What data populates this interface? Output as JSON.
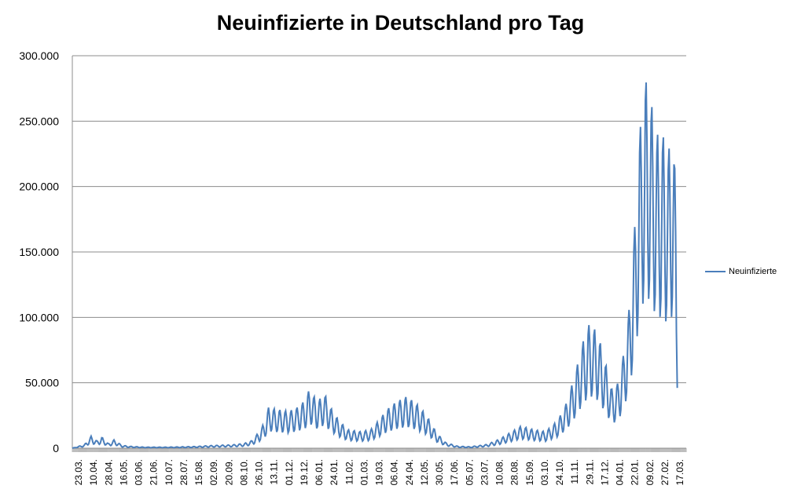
{
  "chart_data": {
    "type": "line",
    "title": "Neuinfizierte in Deutschland pro Tag",
    "xlabel": "",
    "ylabel": "",
    "ylim": [
      0,
      300000
    ],
    "y_ticks": [
      "0",
      "50.000",
      "100.000",
      "150.000",
      "200.000",
      "250.000",
      "300.000"
    ],
    "y_tick_values": [
      0,
      50000,
      100000,
      150000,
      200000,
      250000,
      300000
    ],
    "grid": true,
    "legend_position": "right",
    "line_color": "#4a7ebb",
    "x_range": [
      "2020-03-05",
      "2022-03-26"
    ],
    "x_tick_labels": [
      "23.03.",
      "10.04.",
      "28.04.",
      "16.05.",
      "03.06.",
      "21.06.",
      "10.07.",
      "28.07.",
      "15.08.",
      "02.09.",
      "20.09.",
      "08.10.",
      "26.10.",
      "13.11.",
      "01.12.",
      "19.12.",
      "06.01.",
      "24.01.",
      "11.02.",
      "01.03.",
      "19.03.",
      "06.04.",
      "24.04.",
      "12.05.",
      "30.05.",
      "17.06.",
      "05.07.",
      "23.07.",
      "10.08.",
      "28.08.",
      "15.09.",
      "03.10.",
      "24.10.",
      "11.11.",
      "29.11.",
      "17.12.",
      "04.01.",
      "22.01.",
      "09.02.",
      "27.02.",
      "17.03."
    ],
    "series": [
      {
        "name": "Neuinfizierte",
        "points": [
          [
            "2020-03-05",
            0
          ],
          [
            "2020-03-20",
            2000
          ],
          [
            "2020-03-28",
            6500
          ],
          [
            "2020-04-04",
            4000
          ],
          [
            "2020-04-10",
            6000
          ],
          [
            "2020-04-18",
            2500
          ],
          [
            "2020-04-25",
            4500
          ],
          [
            "2020-05-05",
            1500
          ],
          [
            "2020-05-15",
            1000
          ],
          [
            "2020-06-01",
            600
          ],
          [
            "2020-07-01",
            600
          ],
          [
            "2020-08-01",
            900
          ],
          [
            "2020-08-20",
            1400
          ],
          [
            "2020-09-15",
            1800
          ],
          [
            "2020-10-01",
            2500
          ],
          [
            "2020-10-10",
            4000
          ],
          [
            "2020-10-20",
            9000
          ],
          [
            "2020-10-27",
            15000
          ],
          [
            "2020-10-31",
            22000
          ],
          [
            "2020-11-10",
            21000
          ],
          [
            "2020-11-25",
            20000
          ],
          [
            "2020-12-05",
            22000
          ],
          [
            "2020-12-15",
            26000
          ],
          [
            "2020-12-20",
            32000
          ],
          [
            "2020-12-30",
            25000
          ],
          [
            "2021-01-07",
            30000
          ],
          [
            "2021-01-15",
            22000
          ],
          [
            "2021-01-25",
            15000
          ],
          [
            "2021-02-05",
            10000
          ],
          [
            "2021-02-20",
            9000
          ],
          [
            "2021-03-05",
            10000
          ],
          [
            "2021-03-15",
            15000
          ],
          [
            "2021-03-25",
            21000
          ],
          [
            "2021-04-05",
            25000
          ],
          [
            "2021-04-18",
            28000
          ],
          [
            "2021-04-30",
            24000
          ],
          [
            "2021-05-12",
            18000
          ],
          [
            "2021-05-25",
            8000
          ],
          [
            "2021-06-05",
            3000
          ],
          [
            "2021-06-20",
            1000
          ],
          [
            "2021-07-05",
            800
          ],
          [
            "2021-07-25",
            2000
          ],
          [
            "2021-08-10",
            5000
          ],
          [
            "2021-08-25",
            9000
          ],
          [
            "2021-09-05",
            12000
          ],
          [
            "2021-09-20",
            10000
          ],
          [
            "2021-10-05",
            9000
          ],
          [
            "2021-10-20",
            15000
          ],
          [
            "2021-10-31",
            25000
          ],
          [
            "2021-11-10",
            40000
          ],
          [
            "2021-11-20",
            58000
          ],
          [
            "2021-11-28",
            68000
          ],
          [
            "2021-12-08",
            62000
          ],
          [
            "2021-12-15",
            50000
          ],
          [
            "2021-12-25",
            32000
          ],
          [
            "2022-01-01",
            35000
          ],
          [
            "2022-01-08",
            50000
          ],
          [
            "2022-01-15",
            75000
          ],
          [
            "2022-01-22",
            120000
          ],
          [
            "2022-01-28",
            170000
          ],
          [
            "2022-02-04",
            200000
          ],
          [
            "2022-02-10",
            190000
          ],
          [
            "2022-02-18",
            170000
          ],
          [
            "2022-02-25",
            170000
          ],
          [
            "2022-03-04",
            160000
          ],
          [
            "2022-03-10",
            175000
          ],
          [
            "2022-03-13",
            140000
          ],
          [
            "2022-03-15",
            78000
          ]
        ]
      }
    ]
  }
}
